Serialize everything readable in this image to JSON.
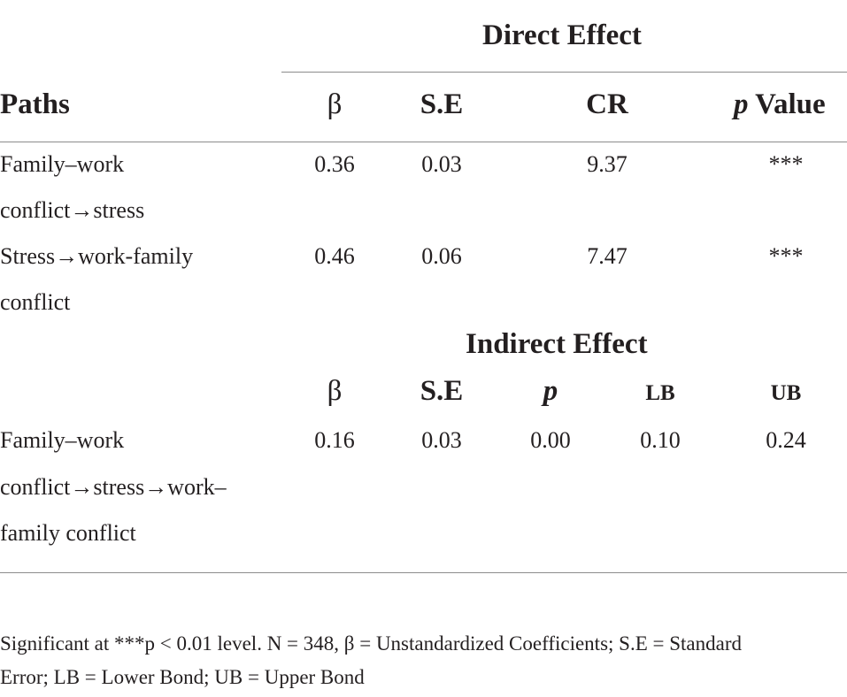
{
  "direct": {
    "title": "Direct Effect",
    "headers": {
      "paths": "Paths",
      "beta": "β",
      "se": "S.E",
      "cr": "CR",
      "p_italic": "p",
      "p_rest": " Value"
    },
    "rows": [
      {
        "path_line1": "Family–work",
        "path_line2": "conflict→stress",
        "beta": "0.36",
        "se": "0.03",
        "cr": "9.37",
        "p": "***"
      },
      {
        "path_line1": "Stress→work-family",
        "path_line2": "conflict",
        "beta": "0.46",
        "se": "0.06",
        "cr": "7.47",
        "p": "***"
      }
    ]
  },
  "indirect": {
    "title": "Indirect Effect",
    "headers": {
      "beta": "β",
      "se": "S.E",
      "p": "p",
      "lb": "LB",
      "ub": "UB"
    },
    "row": {
      "path_line1": "Family–work",
      "path_line2": "conflict→stress→work–",
      "path_line3": "family conflict",
      "beta": "0.16",
      "se": "0.03",
      "p": "0.00",
      "lb": "0.10",
      "ub": "0.24"
    }
  },
  "footnote": {
    "line1": "Significant at ***p < 0.01 level. N = 348, β = Unstandardized Coefficients; S.E = Standard",
    "line2": "Error; LB = Lower Bond; UB = Upper Bond"
  }
}
